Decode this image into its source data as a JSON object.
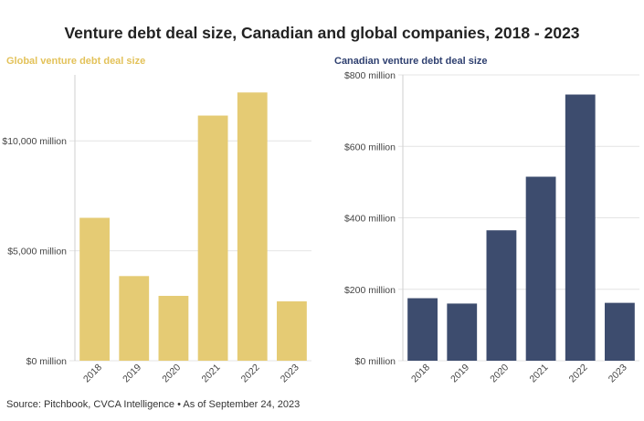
{
  "title": "Venture debt deal size, Canadian and global companies, 2018 - 2023",
  "source": "Source: Pitchbook, CVCA Intelligence • As of September 24, 2023",
  "chart_data": [
    {
      "type": "bar",
      "title": "Global venture debt deal size",
      "title_color": "#e3c25a",
      "bar_color": "#e5cb74",
      "categories": [
        "2018",
        "2019",
        "2020",
        "2021",
        "2022",
        "2023"
      ],
      "values": [
        6500,
        3850,
        2950,
        11150,
        12200,
        2700
      ],
      "ylim": [
        0,
        13000
      ],
      "yticks": [
        0,
        5000,
        10000
      ],
      "ytick_labels": [
        "$0 million",
        "$5,000 million",
        "$10,000 million"
      ],
      "xlabel": "",
      "ylabel": "",
      "grid": true,
      "legend": "none"
    },
    {
      "type": "bar",
      "title": "Canadian venture debt deal size",
      "title_color": "#2f4070",
      "bar_color": "#3d4c6e",
      "categories": [
        "2018",
        "2019",
        "2020",
        "2021",
        "2022",
        "2023"
      ],
      "values": [
        175,
        160,
        365,
        515,
        745,
        162
      ],
      "ylim": [
        0,
        800
      ],
      "yticks": [
        0,
        200,
        400,
        600,
        800
      ],
      "ytick_labels": [
        "$0 million",
        "$200 million",
        "$400 million",
        "$600 million",
        "$800 million"
      ],
      "xlabel": "",
      "ylabel": "",
      "grid": true,
      "legend": "none"
    }
  ]
}
